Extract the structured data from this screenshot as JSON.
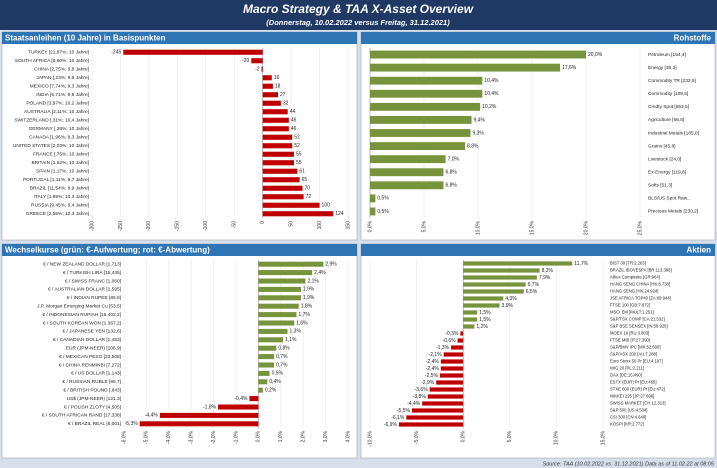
{
  "header": {
    "title": "Macro Strategy & TAA X-Asset Overview",
    "subtitle": "(Donnerstag, 10.02.2022 versus Freitag, 31.12.2021)"
  },
  "footer": "Source: TAA (10.02.2022 vs. 31.12.2021) Data as of 11.02.22 at 08:05",
  "chart_data": [
    {
      "type": "hbar",
      "title": "Staatsanleihen (10 Jahre) in Basispunkten",
      "label_side": "left",
      "color": "#c00000",
      "categories": [
        "TURKEY [21,87%; 10 Jahre]",
        "SOUTH AFRICA [9,60%; 10 Jahre]",
        "CHINA [2,75%; 9,8 Jahre]",
        "JAPAN [,23%; 9,9 Jahre]",
        "MEXICO [7,74%; 9,3 Jahre]",
        "INDIA [6,71%; 9,9 Jahre]",
        "POLAND [3,97%; 10,2 Jahre]",
        "AUSTRALIA [2,11%; 10 Jahre]",
        "SWITZERLAND [,31%; 10,4 Jahre]",
        "GERMANY [,28%; 10 Jahre]",
        "CANADA [1,96%; 9,3 Jahre]",
        "UNITED STATES [2,03%; 10 Jahre]",
        "FRANCE [,75%; 10 Jahre]",
        "BRITAIN [1,52%; 10 Jahre]",
        "SPAIN [1,17%; 10 Jahre]",
        "PORTUGAL [1,11%; 9,7 Jahre]",
        "BRAZIL [11,54%; 8,9 Jahre]",
        "ITALY [1,89%; 10,3 Jahre]",
        "RUSSIA [9,45%; 9,4 Jahre]",
        "GREECE [2,55%; 10,3 Jahre]"
      ],
      "values": [
        -245,
        -20,
        -2,
        16,
        18,
        27,
        32,
        44,
        46,
        46,
        52,
        52,
        55,
        55,
        61,
        65,
        70,
        72,
        100,
        124
      ],
      "xlim": [
        -300,
        150
      ],
      "xticks": [
        -300,
        -250,
        -200,
        -150,
        -100,
        -50,
        0,
        50,
        100,
        150
      ]
    },
    {
      "type": "hbar",
      "title": "Rohstoffe",
      "label_side": "right",
      "color": "#77933c",
      "categories": [
        "Petroleum [154,4]",
        "Energy [36,3]",
        "Commodity TR [233,9]",
        "Commodity [109,5]",
        "Cmdty Spot [553,5]",
        "Agriculture [66,5]",
        "Industrial Metals [185,0]",
        "Grains [45,8]",
        "Livestock [24,0]",
        "Ex-Energy [119,8]",
        "Softs [51,3]",
        "BLS/US Spot Raw...",
        "Precious Metals [230,2]"
      ],
      "values": [
        20.0,
        17.6,
        10.4,
        10.4,
        10.2,
        9.4,
        9.3,
        8.8,
        7.0,
        6.8,
        6.8,
        0.5,
        0.5
      ],
      "value_labels": [
        "20,0%",
        "17,6%",
        "10,4%",
        "10,4%",
        "10,2%",
        "9,4%",
        "9,3%",
        "8,8%",
        "7,0%",
        "6,8%",
        "6,8%",
        "0,5%",
        "0,5%"
      ],
      "xlim": [
        0,
        25
      ],
      "xticks": [
        {
          "value": 0,
          "label": "0,0%"
        },
        {
          "value": 5,
          "label": "5,0%"
        },
        {
          "value": 10,
          "label": "10,0%"
        },
        {
          "value": 15,
          "label": "15,0%"
        },
        {
          "value": 20,
          "label": "20,0%"
        },
        {
          "value": 25,
          "label": "25,0%"
        }
      ]
    },
    {
      "type": "hbar",
      "title": "Wechselkurse (grün: €-Aufwertung; rot: €-Abwertung)",
      "label_side": "left",
      "positive_color": "#77933c",
      "negative_color": "#c00000",
      "categories": [
        "€ / NEW ZEALAND DOLLAR [1,713]",
        "€ / TURKISH LIRA [15,445]",
        "€ / SWISS FRANC [1,060]",
        "€ / AUSTRALIAN DOLLAR [1,595]",
        "€ / INDIAN RUPEE [85,8]",
        "J.P. Morgan Emerging Market Cu [53,5]",
        "€ / INDONESIAN RUPIAH [16.402,2]",
        "€ / SOUTH KOREAN WON [1.367,2]",
        "€ / JAPANESE YEN [132,6]",
        "€ / CANADIAN DOLLAR [1,453]",
        "EUR (JPM-NEER) [106,9]",
        "€ / MEXICAN PESO [23,508]",
        "€ / CHINA RENMINBI [7,272]",
        "€ / US DOLLAR [1,143]",
        "€ / RUSSIAN RUBLE [85,7]",
        "€ / BRITISH POUND [,843]",
        "US$ (JPM-NEER) [121,3]",
        "€ / POLISH ZLOTY [4,505]",
        "€ / SOUTH AFRICAN RAND [17,338]",
        "€ / BRAZIL REAL [6,001]"
      ],
      "values": [
        2.9,
        2.4,
        2.1,
        1.9,
        1.9,
        1.8,
        1.7,
        1.6,
        1.3,
        1.1,
        0.8,
        0.7,
        0.7,
        0.5,
        0.4,
        0.2,
        -0.4,
        -1.8,
        -4.4,
        -5.3
      ],
      "value_labels": [
        "2,9%",
        "2,4%",
        "2,1%",
        "1,9%",
        "1,9%",
        "1,8%",
        "1,7%",
        "1,6%",
        "1,3%",
        "1,1%",
        "0,8%",
        "0,7%",
        "0,7%",
        "0,5%",
        "0,4%",
        "0,2%",
        "-0,4%",
        "-1,8%",
        "-4,4%",
        "-5,3%"
      ],
      "xlim": [
        -6,
        4
      ],
      "xticks": [
        {
          "value": -6,
          "label": "-6,0%"
        },
        {
          "value": -5,
          "label": "-5,0%"
        },
        {
          "value": -4,
          "label": "-4,0%"
        },
        {
          "value": -3,
          "label": "-3,0%"
        },
        {
          "value": -2,
          "label": "-2,0%"
        },
        {
          "value": -1,
          "label": "-1,0%"
        },
        {
          "value": 0,
          "label": "0,0%"
        },
        {
          "value": 1,
          "label": "1,0%"
        },
        {
          "value": 2,
          "label": "2,0%"
        },
        {
          "value": 3,
          "label": "3,0%"
        },
        {
          "value": 4,
          "label": "4,0%"
        }
      ]
    },
    {
      "type": "hbar",
      "title": "Aktien",
      "label_side": "right",
      "positive_color": "#77933c",
      "negative_color": "#c00000",
      "categories": [
        "BIST 30 [TR:2.263]",
        "BRAZIL IBOVESPA [BR:113.368]",
        "Athex Composite [GR:964]",
        "HANG SENG CHINA [HK:8.738]",
        "HANG SENG [HK:24.924]",
        "JSE AFRICA TOP40 [ZA:69.944]",
        "FTSE 100 [GB:7.672]",
        "MSCI EM [MULT:1.251]",
        "S&P/TSX COMP [CA:21.532]",
        "S&P BSE SENSEX [IN:58.926]",
        "MOEX 10 [RU:3.803]",
        "FTSE MIB [IT:27.390]",
        "S&P/BMV IPC [MX:52.600]",
        "S&P/ASX 200 [AU:7.288]",
        "Euro Stoxx 50 Pr [EU:4.197]",
        "WIG 20 [PL:2.211]",
        "DAX [DE:15.490]",
        "ESTX (EUR) Pr [EU:465]",
        "STXE 600 (EUR) Pr [EU:472]",
        "NIKKEI 225 [JP:27.696]",
        "SWISS MARKET [CH:12.313]",
        "S&P 500 [US:4.504]",
        "CSI 300 [CN:4.640]",
        "KOSPI [KR:2.772]"
      ],
      "values": [
        11.7,
        8.2,
        7.9,
        6.7,
        6.5,
        4.3,
        3.9,
        1.5,
        1.5,
        1.2,
        -0.3,
        -0.6,
        -1.3,
        -2.1,
        -2.4,
        -2.4,
        -2.5,
        -2.9,
        -3.6,
        -3.8,
        -4.4,
        -5.5,
        -6.1,
        -6.9
      ],
      "value_labels": [
        "11,7%",
        "8,2%",
        "7,9%",
        "6,7%",
        "6,5%",
        "4,3%",
        "3,9%",
        "1,5%",
        "1,5%",
        "1,2%",
        "-0,3%",
        "-0,6%",
        "-1,3%",
        "-2,1%",
        "-2,4%",
        "-2,4%",
        "-2,5%",
        "-2,9%",
        "-3,6%",
        "-3,8%",
        "-4,4%",
        "-5,5%",
        "-6,1%",
        "-6,9%"
      ],
      "xlim": [
        -10,
        15
      ],
      "xticks": [
        {
          "value": -10,
          "label": "-10,0%"
        },
        {
          "value": -5,
          "label": "-5,0%"
        },
        {
          "value": 0,
          "label": "0,0%"
        },
        {
          "value": 5,
          "label": "5,0%"
        },
        {
          "value": 10,
          "label": "10,0%"
        },
        {
          "value": 15,
          "label": "15,0%"
        }
      ]
    }
  ]
}
